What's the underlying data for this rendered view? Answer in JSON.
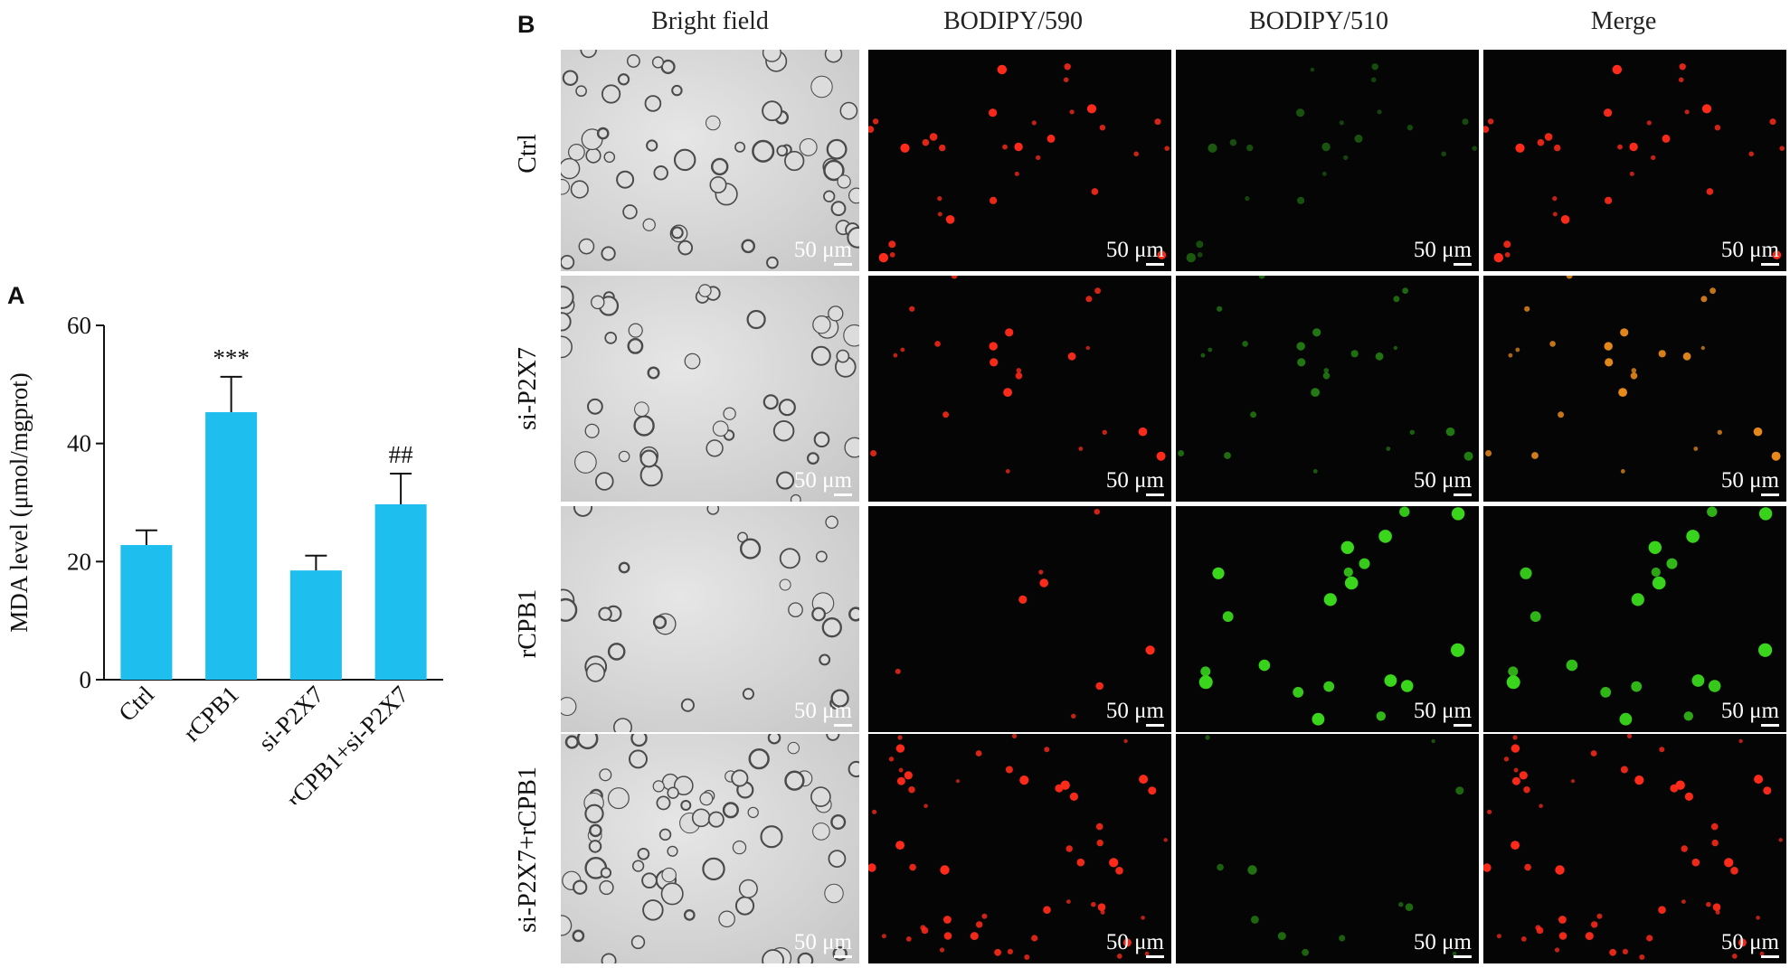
{
  "panel_a": {
    "letter": "A",
    "chart_data": {
      "type": "bar",
      "categories": [
        "Ctrl",
        "rCPB1",
        "si-P2X7",
        "rCPB1+si-P2X7"
      ],
      "values": [
        22.8,
        45.3,
        18.5,
        29.7
      ],
      "errors": [
        2.5,
        6.0,
        2.5,
        5.2
      ],
      "annotations": [
        "",
        "***",
        "",
        "##"
      ],
      "ylabel": "MDA level (μmol/mgprot)",
      "yticks": [
        0,
        20,
        40,
        60
      ],
      "ylim": [
        0,
        60
      ],
      "bar_color": "#1ebfef",
      "grid": false
    }
  },
  "panel_b": {
    "letter": "B",
    "columns": [
      "Bright field",
      "BODIPY/590",
      "BODIPY/510",
      "Merge"
    ],
    "rows": [
      "Ctrl",
      "si-P2X7",
      "rCPB1",
      "si-P2X7+rCPB1"
    ],
    "scale_bar": "50 μm",
    "colors": {
      "red_channel": "#ff2a1a",
      "green_channel": "#39d61c",
      "merge_yellow": "#e88a1a",
      "brightfield": "#d6d6d6"
    }
  }
}
